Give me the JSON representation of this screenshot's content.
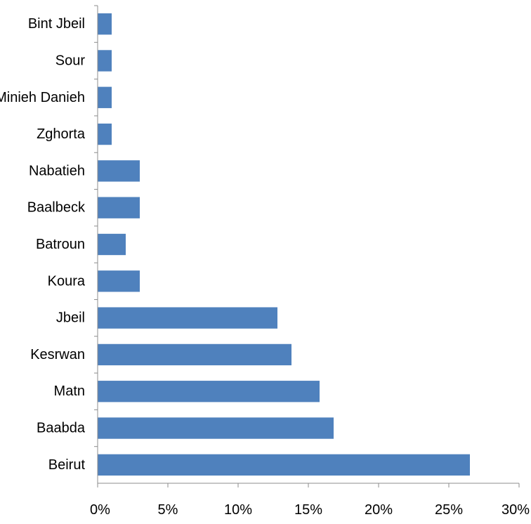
{
  "chart_data": {
    "type": "bar",
    "orientation": "horizontal",
    "categories": [
      "Bint Jbeil",
      "Sour",
      "Minieh Danieh",
      "Zghorta",
      "Nabatieh",
      "Baalbeck",
      "Batroun",
      "Koura",
      "Jbeil",
      "Kesrwan",
      "Matn",
      "Baabda",
      "Beirut"
    ],
    "values": [
      1,
      1,
      1,
      1,
      3,
      3,
      2,
      3,
      12.8,
      13.8,
      15.8,
      16.8,
      26.5
    ],
    "xlim": [
      0,
      30
    ],
    "xticks": [
      0,
      5,
      10,
      15,
      20,
      25,
      30
    ],
    "xtick_labels": [
      "0%",
      "5%",
      "10%",
      "15%",
      "20%",
      "25%",
      "30%"
    ],
    "grid": false,
    "legend": "none",
    "bar_color": "#4f81bd"
  }
}
